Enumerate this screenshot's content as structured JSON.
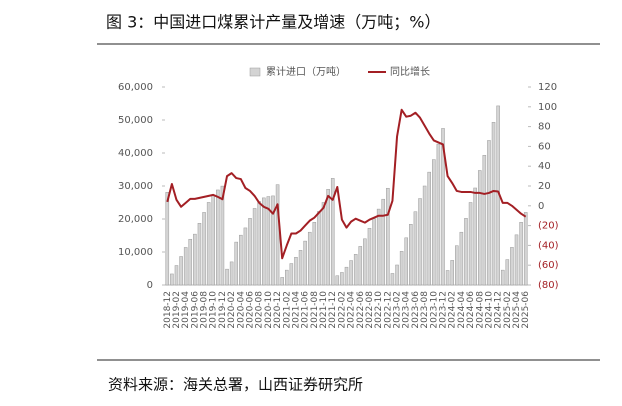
{
  "title": "图 3：中国进口煤累计产量及增速（万吨；%）",
  "source": "资料来源：海关总署，山西证券研究所",
  "chart_data": {
    "type": "bar_line",
    "categories": [
      "2018-12",
      null,
      "2019-02",
      null,
      "2019-04",
      null,
      "2019-06",
      null,
      "2019-08",
      null,
      "2019-10",
      null,
      "2019-12",
      null,
      "2020-02",
      null,
      "2020-04",
      null,
      "2020-06",
      null,
      "2020-08",
      null,
      "2020-10",
      null,
      "2020-12",
      null,
      "2021-02",
      null,
      "2021-04",
      null,
      "2021-06",
      null,
      "2021-08",
      null,
      "2021-10",
      null,
      "2021-12",
      null,
      "2022-02",
      null,
      "2022-04",
      null,
      "2022-06",
      null,
      "2022-08",
      null,
      "2022-10",
      null,
      "2022-12",
      null,
      "2023-02",
      null,
      "2023-04",
      null,
      "2023-06",
      null,
      "2023-08",
      null,
      "2023-10",
      null,
      "2023-12",
      null,
      "2024-02",
      null,
      "2024-04",
      null,
      "2024-06",
      null,
      "2024-08",
      null,
      "2024-10",
      null,
      "2024-12",
      null,
      "2025-02",
      null,
      "2025-04",
      null,
      "2025-06"
    ],
    "series": [
      {
        "name": "累计进口（万吨）",
        "color": "#d4d4d4",
        "stroke": "#9a9a9a",
        "kind": "bar",
        "values": [
          28100,
          3350,
          5900,
          8630,
          11380,
          13870,
          15410,
          18700,
          21990,
          25020,
          27100,
          28800,
          29967,
          4800,
          7000,
          13000,
          15100,
          17300,
          20200,
          23200,
          25300,
          26400,
          26800,
          27000,
          30399,
          2300,
          4500,
          6500,
          8400,
          10500,
          13300,
          16000,
          19000,
          22300,
          25000,
          29000,
          32322,
          2800,
          3800,
          5400,
          7400,
          9300,
          11700,
          14000,
          17200,
          20100,
          23000,
          26000,
          29320,
          3500,
          6064,
          10200,
          14300,
          18400,
          22200,
          26200,
          30000,
          34200,
          38000,
          42700,
          47442,
          4400,
          7461,
          11900,
          16000,
          20200,
          25000,
          29400,
          34700,
          39300,
          43800,
          49300,
          54270,
          4500,
          7700,
          11400,
          15200,
          19000,
          22000
        ]
      },
      {
        "name": "同比增长",
        "color": "#a31f24",
        "kind": "line",
        "axis": "y2",
        "values": [
          4,
          22,
          6,
          -1,
          3,
          7,
          7,
          8,
          9,
          10,
          11,
          9,
          6.6,
          30,
          33,
          28,
          27,
          18,
          15,
          10,
          3,
          -1,
          -3,
          -8,
          1.5,
          -53,
          -40,
          -28,
          -28,
          -25,
          -20,
          -15,
          -12,
          -7,
          -2,
          10,
          6,
          19,
          -14,
          -22,
          -16,
          -13,
          -15,
          -17,
          -14,
          -12,
          -10,
          -10,
          -9,
          5,
          70,
          97,
          90,
          91,
          94,
          89,
          81,
          73,
          66,
          64,
          62,
          30,
          23,
          15,
          14,
          14,
          14,
          13,
          13,
          12,
          13,
          15,
          14.4,
          3,
          3,
          0,
          -4,
          -8,
          -11
        ]
      }
    ],
    "ylim": [
      0,
      60000
    ],
    "yticks": [
      0,
      {
        "value": 10000,
        "label": "10,000"
      },
      {
        "value": 20000,
        "label": "20,000"
      },
      {
        "value": 30000,
        "label": "30,000"
      },
      {
        "value": 40000,
        "label": "40,000"
      },
      {
        "value": 50000,
        "label": "50,000"
      },
      {
        "value": 60000,
        "label": "60,000"
      }
    ],
    "y2lim": [
      -80,
      120
    ],
    "y2ticks": [
      {
        "value": -80,
        "label": "(80)"
      },
      {
        "value": -60,
        "label": "(60)"
      },
      {
        "value": -40,
        "label": "(40)"
      },
      {
        "value": -20,
        "label": "(20)"
      },
      0,
      20,
      40,
      60,
      80,
      100,
      120
    ],
    "negative_color": "#a31f24"
  }
}
